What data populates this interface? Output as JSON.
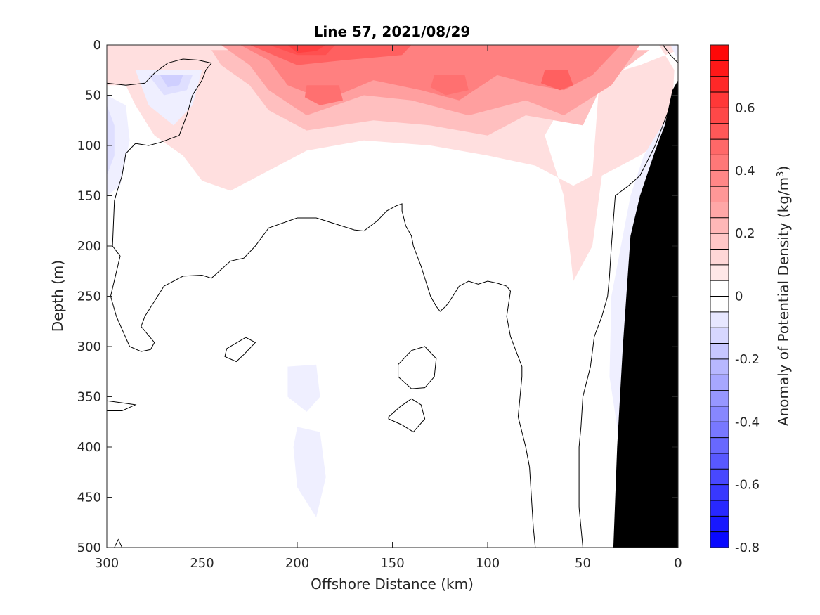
{
  "chart_data": {
    "type": "contourf",
    "title": "Line 57, 2021/08/29",
    "xlabel": "Offshore Distance (km)",
    "ylabel": "Depth (m)",
    "colorbar_label": "Anomaly of Potential Density (kg/m3)",
    "colorbar_label_main": "Anomaly of Potential Density (kg/m",
    "colorbar_label_sup": "3",
    "colorbar_label_close": ")",
    "xlim": [
      300,
      0
    ],
    "ylim": [
      500,
      0
    ],
    "x_reversed": true,
    "y_reversed": true,
    "xticks": [
      300,
      250,
      200,
      150,
      100,
      50,
      0
    ],
    "yticks": [
      0,
      50,
      100,
      150,
      200,
      250,
      300,
      350,
      400,
      450,
      500
    ],
    "clim": [
      -0.8,
      0.8
    ],
    "colorbar_step": 0.05,
    "colorbar_ticks": [
      -0.8,
      -0.6,
      -0.4,
      -0.2,
      0,
      0.2,
      0.4,
      0.6
    ],
    "colorbar_ticklabels": [
      "-0.8",
      "-0.6",
      "-0.4",
      "-0.2",
      "0",
      "0.2",
      "0.4",
      "0.6"
    ],
    "colormap": {
      "negative_end": "#0000ff",
      "zero": "#ffffff",
      "positive_end": "#ff0000"
    },
    "zero_contour_color": "#000000",
    "bathymetry_color": "#000000",
    "fields": [
      {
        "level": 0.1,
        "points": [
          [
            300,
            0
          ],
          [
            0,
            0
          ],
          [
            0,
            5
          ],
          [
            20,
            20
          ],
          [
            55,
            40
          ],
          [
            70,
            90
          ],
          [
            60,
            150
          ],
          [
            55,
            235
          ],
          [
            45,
            200
          ],
          [
            40,
            130
          ],
          [
            20,
            110
          ],
          [
            5,
            90
          ],
          [
            3,
            60
          ],
          [
            2,
            25
          ],
          [
            10,
            0
          ],
          [
            45,
            0
          ],
          [
            40,
            0
          ],
          [
            45,
            130
          ],
          [
            55,
            140
          ],
          [
            75,
            120
          ],
          [
            100,
            110
          ],
          [
            130,
            100
          ],
          [
            165,
            95
          ],
          [
            195,
            105
          ],
          [
            235,
            145
          ],
          [
            250,
            135
          ],
          [
            260,
            110
          ],
          [
            275,
            90
          ],
          [
            285,
            60
          ],
          [
            290,
            40
          ],
          [
            300,
            40
          ]
        ]
      },
      {
        "level": 0.2,
        "points": [
          [
            245,
            5
          ],
          [
            15,
            5
          ],
          [
            40,
            40
          ],
          [
            50,
            80
          ],
          [
            80,
            70
          ],
          [
            100,
            90
          ],
          [
            130,
            80
          ],
          [
            160,
            75
          ],
          [
            195,
            85
          ],
          [
            215,
            65
          ],
          [
            225,
            40
          ],
          [
            240,
            20
          ]
        ]
      },
      {
        "level": 0.3,
        "points": [
          [
            240,
            0
          ],
          [
            20,
            0
          ],
          [
            35,
            40
          ],
          [
            60,
            70
          ],
          [
            80,
            55
          ],
          [
            110,
            70
          ],
          [
            140,
            55
          ],
          [
            165,
            50
          ],
          [
            195,
            70
          ],
          [
            215,
            45
          ],
          [
            225,
            20
          ]
        ]
      },
      {
        "level": 0.4,
        "points": [
          [
            230,
            0
          ],
          [
            30,
            0
          ],
          [
            45,
            30
          ],
          [
            60,
            45
          ],
          [
            75,
            40
          ],
          [
            95,
            30
          ],
          [
            115,
            55
          ],
          [
            135,
            45
          ],
          [
            160,
            35
          ],
          [
            185,
            55
          ],
          [
            205,
            40
          ],
          [
            215,
            15
          ]
        ]
      },
      {
        "level": 0.5,
        "points": [
          [
            225,
            0
          ],
          [
            140,
            0
          ],
          [
            145,
            10
          ],
          [
            175,
            15
          ],
          [
            200,
            20
          ]
        ]
      },
      {
        "level": 0.55,
        "points": [
          [
            215,
            0
          ],
          [
            180,
            0
          ],
          [
            185,
            10
          ],
          [
            200,
            10
          ]
        ]
      },
      {
        "level": 0.6,
        "points": [
          [
            205,
            0
          ],
          [
            185,
            0
          ],
          [
            190,
            6
          ],
          [
            200,
            8
          ]
        ]
      },
      {
        "level": 0.5,
        "points": [
          [
            70,
            25
          ],
          [
            58,
            25
          ],
          [
            55,
            40
          ],
          [
            62,
            45
          ],
          [
            72,
            38
          ]
        ]
      },
      {
        "level": 0.45,
        "points": [
          [
            195,
            40
          ],
          [
            178,
            40
          ],
          [
            176,
            55
          ],
          [
            188,
            60
          ],
          [
            196,
            52
          ]
        ]
      },
      {
        "level": 0.45,
        "points": [
          [
            128,
            30
          ],
          [
            112,
            30
          ],
          [
            110,
            45
          ],
          [
            122,
            50
          ],
          [
            130,
            42
          ]
        ]
      },
      {
        "level": -0.05,
        "points": [
          [
            285,
            25
          ],
          [
            250,
            25
          ],
          [
            255,
            60
          ],
          [
            265,
            80
          ],
          [
            278,
            60
          ]
        ]
      },
      {
        "level": -0.1,
        "points": [
          [
            278,
            30
          ],
          [
            255,
            30
          ],
          [
            258,
            45
          ],
          [
            270,
            50
          ]
        ]
      },
      {
        "level": -0.15,
        "points": [
          [
            272,
            30
          ],
          [
            260,
            30
          ],
          [
            262,
            40
          ],
          [
            268,
            42
          ]
        ]
      },
      {
        "level": -0.05,
        "points": [
          [
            300,
            50
          ],
          [
            290,
            60
          ],
          [
            288,
            95
          ],
          [
            293,
            140
          ],
          [
            300,
            150
          ]
        ]
      },
      {
        "level": -0.1,
        "points": [
          [
            300,
            60
          ],
          [
            296,
            80
          ],
          [
            296,
            110
          ],
          [
            300,
            130
          ]
        ]
      },
      {
        "level": -0.05,
        "points": [
          [
            205,
            320
          ],
          [
            190,
            318
          ],
          [
            188,
            350
          ],
          [
            195,
            365
          ],
          [
            205,
            350
          ]
        ]
      },
      {
        "level": -0.05,
        "points": [
          [
            200,
            380
          ],
          [
            188,
            385
          ],
          [
            185,
            430
          ],
          [
            190,
            470
          ],
          [
            200,
            440
          ],
          [
            202,
            400
          ]
        ]
      },
      {
        "level": -0.05,
        "points": [
          [
            4,
            0
          ],
          [
            0,
            0
          ],
          [
            0,
            15
          ]
        ]
      },
      {
        "level": -0.05,
        "points": [
          [
            18,
            110
          ],
          [
            2,
            60
          ],
          [
            0,
            60
          ],
          [
            0,
            500
          ],
          [
            30,
            500
          ],
          [
            32,
            380
          ],
          [
            36,
            330
          ],
          [
            35,
            250
          ],
          [
            30,
            200
          ],
          [
            25,
            150
          ]
        ]
      }
    ],
    "bathymetry": [
      [
        0,
        35
      ],
      [
        3,
        45
      ],
      [
        7,
        80
      ],
      [
        12,
        105
      ],
      [
        20,
        150
      ],
      [
        25,
        190
      ],
      [
        29,
        300
      ],
      [
        32,
        400
      ],
      [
        34,
        500
      ],
      [
        0,
        500
      ]
    ],
    "zero_contours": [
      {
        "closed": false,
        "points": [
          [
            300,
            38
          ],
          [
            290,
            40
          ],
          [
            280,
            38
          ],
          [
            275,
            28
          ],
          [
            268,
            18
          ],
          [
            260,
            14
          ],
          [
            252,
            15
          ],
          [
            245,
            18
          ],
          [
            248,
            25
          ],
          [
            250,
            35
          ],
          [
            255,
            50
          ],
          [
            258,
            70
          ],
          [
            262,
            90
          ],
          [
            272,
            97
          ],
          [
            278,
            100
          ],
          [
            285,
            98
          ],
          [
            290,
            108
          ],
          [
            292,
            130
          ],
          [
            295,
            148
          ],
          [
            296,
            155
          ],
          [
            297,
            200
          ],
          [
            293,
            210
          ],
          [
            298,
            250
          ],
          [
            295,
            270
          ],
          [
            288,
            300
          ],
          [
            282,
            305
          ],
          [
            277,
            303
          ],
          [
            275,
            296
          ],
          [
            282,
            280
          ],
          [
            280,
            270
          ],
          [
            270,
            240
          ],
          [
            260,
            230
          ],
          [
            250,
            229
          ],
          [
            245,
            232
          ],
          [
            235,
            215
          ],
          [
            228,
            212
          ],
          [
            222,
            200
          ],
          [
            215,
            182
          ],
          [
            200,
            172
          ],
          [
            190,
            172
          ],
          [
            180,
            178
          ],
          [
            170,
            184
          ],
          [
            165,
            185
          ],
          [
            158,
            175
          ],
          [
            153,
            165
          ],
          [
            148,
            160
          ],
          [
            145,
            158
          ],
          [
            145,
            165
          ],
          [
            143,
            180
          ],
          [
            140,
            190
          ],
          [
            139,
            200
          ],
          [
            135,
            220
          ],
          [
            130,
            250
          ],
          [
            127,
            260
          ],
          [
            125,
            265
          ],
          [
            122,
            260
          ],
          [
            120,
            255
          ],
          [
            115,
            240
          ],
          [
            110,
            235
          ],
          [
            105,
            238
          ],
          [
            100,
            235
          ],
          [
            95,
            237
          ],
          [
            90,
            240
          ],
          [
            88,
            245
          ],
          [
            90,
            270
          ],
          [
            88,
            290
          ],
          [
            84,
            310
          ],
          [
            82,
            320
          ],
          [
            82,
            330
          ],
          [
            83,
            350
          ],
          [
            84,
            370
          ],
          [
            82,
            385
          ],
          [
            80,
            400
          ],
          [
            78,
            420
          ],
          [
            77,
            450
          ],
          [
            76,
            480
          ],
          [
            75,
            500
          ]
        ]
      },
      {
        "closed": false,
        "points": [
          [
            50,
            500
          ],
          [
            52,
            460
          ],
          [
            52,
            400
          ],
          [
            51,
            380
          ],
          [
            50,
            350
          ],
          [
            46,
            320
          ],
          [
            44,
            290
          ],
          [
            40,
            270
          ],
          [
            37,
            250
          ],
          [
            36,
            230
          ],
          [
            35,
            200
          ],
          [
            33,
            150
          ],
          [
            26,
            140
          ],
          [
            20,
            130
          ],
          [
            12,
            100
          ],
          [
            8,
            80
          ],
          [
            4,
            60
          ],
          [
            2,
            50
          ],
          [
            0,
            40
          ]
        ]
      },
      {
        "closed": false,
        "points": [
          [
            8,
            0
          ],
          [
            4,
            10
          ],
          [
            0,
            18
          ]
        ]
      },
      {
        "closed": true,
        "points": [
          [
            237,
            302
          ],
          [
            227,
            291
          ],
          [
            222,
            296
          ],
          [
            228,
            308
          ],
          [
            232,
            315
          ],
          [
            238,
            310
          ]
        ]
      },
      {
        "closed": true,
        "points": [
          [
            147,
            318
          ],
          [
            140,
            304
          ],
          [
            133,
            300
          ],
          [
            127,
            312
          ],
          [
            128,
            330
          ],
          [
            133,
            341
          ],
          [
            140,
            342
          ],
          [
            147,
            330
          ]
        ]
      },
      {
        "closed": true,
        "points": [
          [
            152,
            370
          ],
          [
            146,
            360
          ],
          [
            140,
            352
          ],
          [
            135,
            358
          ],
          [
            133,
            372
          ],
          [
            139,
            385
          ],
          [
            145,
            378
          ],
          [
            152,
            372
          ]
        ]
      },
      {
        "closed": true,
        "points": [
          [
            300,
            354
          ],
          [
            292,
            356
          ],
          [
            285,
            358
          ],
          [
            292,
            364
          ],
          [
            300,
            364
          ]
        ]
      },
      {
        "closed": false,
        "points": [
          [
            296,
            500
          ],
          [
            294,
            492
          ],
          [
            292,
            500
          ]
        ]
      }
    ]
  }
}
